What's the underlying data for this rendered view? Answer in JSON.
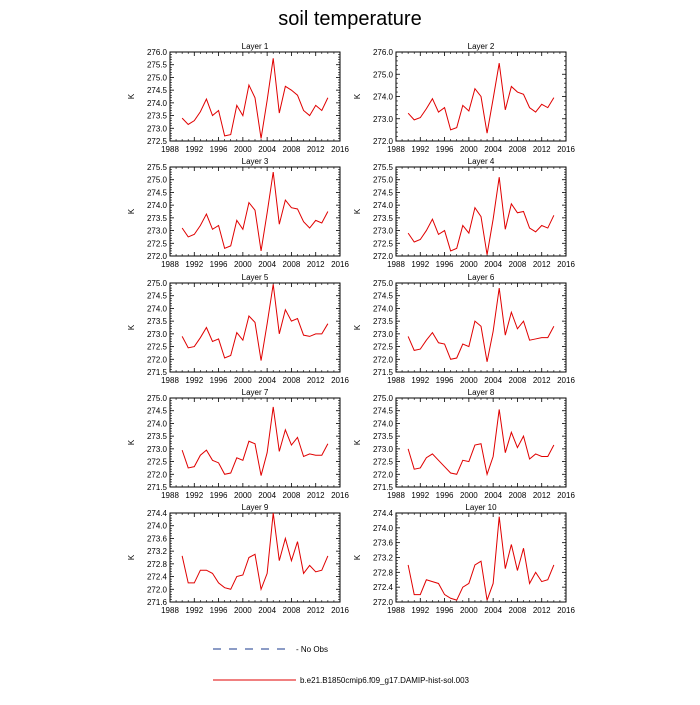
{
  "figure": {
    "title": "soil temperature",
    "legend": {
      "entries": [
        {
          "label": "No Obs",
          "style": "dashed",
          "color": "#1a3a8c"
        },
        {
          "label": "b.e21.B1850cmip6.f09_g17.DAMIP-hist-sol.003",
          "style": "solid",
          "color": "#e00000"
        }
      ]
    }
  },
  "chart_data": [
    {
      "type": "line",
      "title": "Layer 1",
      "ylabel": "K",
      "xlim": [
        1988,
        2016
      ],
      "ylim": [
        272.5,
        276.0
      ],
      "xticks": [
        "1988",
        "1992",
        "1996",
        "2000",
        "2004",
        "2008",
        "2012",
        "2016"
      ],
      "yticks": [
        "272.5",
        "273.0",
        "273.5",
        "274.0",
        "274.5",
        "275.0",
        "275.5",
        "276.0"
      ],
      "x": [
        1990,
        1991,
        1992,
        1993,
        1994,
        1995,
        1996,
        1997,
        1998,
        1999,
        2000,
        2001,
        2002,
        2003,
        2004,
        2005,
        2006,
        2007,
        2008,
        2009,
        2010,
        2011,
        2012,
        2013,
        2014
      ],
      "series": [
        {
          "name": "b.e21.B1850cmip6.f09_g17.DAMIP-hist-sol.003",
          "color": "#e00000",
          "values": [
            273.4,
            273.15,
            273.3,
            273.65,
            274.15,
            273.5,
            273.7,
            272.7,
            272.75,
            273.9,
            273.5,
            274.7,
            274.2,
            272.6,
            274.1,
            275.75,
            273.6,
            274.65,
            274.5,
            274.3,
            273.7,
            273.5,
            273.9,
            273.7,
            274.2
          ]
        }
      ]
    },
    {
      "type": "line",
      "title": "Layer 2",
      "ylabel": "K",
      "xlim": [
        1988,
        2016
      ],
      "ylim": [
        272.0,
        276.0
      ],
      "xticks": [
        "1988",
        "1992",
        "1996",
        "2000",
        "2004",
        "2008",
        "2012",
        "2016"
      ],
      "yticks": [
        "272.0",
        "273.0",
        "274.0",
        "275.0",
        "276.0"
      ],
      "x": [
        1990,
        1991,
        1992,
        1993,
        1994,
        1995,
        1996,
        1997,
        1998,
        1999,
        2000,
        2001,
        2002,
        2003,
        2004,
        2005,
        2006,
        2007,
        2008,
        2009,
        2010,
        2011,
        2012,
        2013,
        2014
      ],
      "series": [
        {
          "name": "b.e21.B1850cmip6.f09_g17.DAMIP-hist-sol.003",
          "color": "#e00000",
          "values": [
            273.25,
            272.95,
            273.05,
            273.45,
            273.9,
            273.3,
            273.5,
            272.5,
            272.6,
            273.6,
            273.35,
            274.35,
            274.0,
            272.35,
            273.9,
            275.5,
            273.4,
            274.45,
            274.2,
            274.1,
            273.5,
            273.3,
            273.65,
            273.5,
            273.95
          ]
        }
      ]
    },
    {
      "type": "line",
      "title": "Layer 3",
      "ylabel": "K",
      "xlim": [
        1988,
        2016
      ],
      "ylim": [
        272.0,
        275.5
      ],
      "xticks": [
        "1988",
        "1992",
        "1996",
        "2000",
        "2004",
        "2008",
        "2012",
        "2016"
      ],
      "yticks": [
        "272.0",
        "272.5",
        "273.0",
        "273.5",
        "274.0",
        "274.5",
        "275.0",
        "275.5"
      ],
      "x": [
        1990,
        1991,
        1992,
        1993,
        1994,
        1995,
        1996,
        1997,
        1998,
        1999,
        2000,
        2001,
        2002,
        2003,
        2004,
        2005,
        2006,
        2007,
        2008,
        2009,
        2010,
        2011,
        2012,
        2013,
        2014
      ],
      "series": [
        {
          "name": "b.e21.B1850cmip6.f09_g17.DAMIP-hist-sol.003",
          "color": "#e00000",
          "values": [
            273.1,
            272.75,
            272.85,
            273.2,
            273.65,
            273.05,
            273.2,
            272.3,
            272.4,
            273.4,
            273.05,
            274.1,
            273.8,
            272.2,
            273.7,
            275.3,
            273.25,
            274.2,
            273.9,
            273.85,
            273.35,
            273.1,
            273.4,
            273.3,
            273.75
          ]
        }
      ]
    },
    {
      "type": "line",
      "title": "Layer 4",
      "ylabel": "K",
      "xlim": [
        1988,
        2016
      ],
      "ylim": [
        272.0,
        275.5
      ],
      "xticks": [
        "1988",
        "1992",
        "1996",
        "2000",
        "2004",
        "2008",
        "2012",
        "2016"
      ],
      "yticks": [
        "272.0",
        "272.5",
        "273.0",
        "273.5",
        "274.0",
        "274.5",
        "275.0",
        "275.5"
      ],
      "x": [
        1990,
        1991,
        1992,
        1993,
        1994,
        1995,
        1996,
        1997,
        1998,
        1999,
        2000,
        2001,
        2002,
        2003,
        2004,
        2005,
        2006,
        2007,
        2008,
        2009,
        2010,
        2011,
        2012,
        2013,
        2014
      ],
      "series": [
        {
          "name": "b.e21.B1850cmip6.f09_g17.DAMIP-hist-sol.003",
          "color": "#e00000",
          "values": [
            272.9,
            272.55,
            272.65,
            273.0,
            273.45,
            272.85,
            273.0,
            272.2,
            272.3,
            273.2,
            272.9,
            273.9,
            273.55,
            272.05,
            273.45,
            275.1,
            273.05,
            274.05,
            273.7,
            273.75,
            273.1,
            272.95,
            273.2,
            273.1,
            273.6
          ]
        }
      ]
    },
    {
      "type": "line",
      "title": "Layer 5",
      "ylabel": "K",
      "xlim": [
        1988,
        2016
      ],
      "ylim": [
        271.5,
        275.0
      ],
      "xticks": [
        "1988",
        "1992",
        "1996",
        "2000",
        "2004",
        "2008",
        "2012",
        "2016"
      ],
      "yticks": [
        "271.5",
        "272.0",
        "272.5",
        "273.0",
        "273.5",
        "274.0",
        "274.5",
        "275.0"
      ],
      "x": [
        1990,
        1991,
        1992,
        1993,
        1994,
        1995,
        1996,
        1997,
        1998,
        1999,
        2000,
        2001,
        2002,
        2003,
        2004,
        2005,
        2006,
        2007,
        2008,
        2009,
        2010,
        2011,
        2012,
        2013,
        2014
      ],
      "series": [
        {
          "name": "b.e21.B1850cmip6.f09_g17.DAMIP-hist-sol.003",
          "color": "#e00000",
          "values": [
            272.9,
            272.45,
            272.5,
            272.85,
            273.25,
            272.7,
            272.8,
            272.05,
            272.15,
            273.05,
            272.75,
            273.7,
            273.45,
            271.95,
            273.4,
            274.95,
            273.0,
            273.95,
            273.5,
            273.6,
            272.95,
            272.9,
            273.0,
            273.0,
            273.4
          ]
        }
      ]
    },
    {
      "type": "line",
      "title": "Layer 6",
      "ylabel": "K",
      "xlim": [
        1988,
        2016
      ],
      "ylim": [
        271.5,
        275.0
      ],
      "xticks": [
        "1988",
        "1992",
        "1996",
        "2000",
        "2004",
        "2008",
        "2012",
        "2016"
      ],
      "yticks": [
        "271.5",
        "272.0",
        "272.5",
        "273.0",
        "273.5",
        "274.0",
        "274.5",
        "275.0"
      ],
      "x": [
        1990,
        1991,
        1992,
        1993,
        1994,
        1995,
        1996,
        1997,
        1998,
        1999,
        2000,
        2001,
        2002,
        2003,
        2004,
        2005,
        2006,
        2007,
        2008,
        2009,
        2010,
        2011,
        2012,
        2013,
        2014
      ],
      "series": [
        {
          "name": "b.e21.B1850cmip6.f09_g17.DAMIP-hist-sol.003",
          "color": "#e00000",
          "values": [
            272.9,
            272.35,
            272.4,
            272.75,
            273.05,
            272.65,
            272.6,
            272.0,
            272.05,
            272.6,
            272.5,
            273.5,
            273.3,
            271.9,
            273.1,
            274.8,
            272.95,
            273.85,
            273.2,
            273.5,
            272.75,
            272.8,
            272.85,
            272.85,
            273.3
          ]
        }
      ]
    },
    {
      "type": "line",
      "title": "Layer 7",
      "ylabel": "K",
      "xlim": [
        1988,
        2016
      ],
      "ylim": [
        271.5,
        275.0
      ],
      "xticks": [
        "1988",
        "1992",
        "1996",
        "2000",
        "2004",
        "2008",
        "2012",
        "2016"
      ],
      "yticks": [
        "271.5",
        "272.0",
        "272.5",
        "273.0",
        "273.5",
        "274.0",
        "274.5",
        "275.0"
      ],
      "x": [
        1990,
        1991,
        1992,
        1993,
        1994,
        1995,
        1996,
        1997,
        1998,
        1999,
        2000,
        2001,
        2002,
        2003,
        2004,
        2005,
        2006,
        2007,
        2008,
        2009,
        2010,
        2011,
        2012,
        2013,
        2014
      ],
      "series": [
        {
          "name": "b.e21.B1850cmip6.f09_g17.DAMIP-hist-sol.003",
          "color": "#e00000",
          "values": [
            272.95,
            272.25,
            272.3,
            272.75,
            272.95,
            272.55,
            272.45,
            272.0,
            272.05,
            272.65,
            272.55,
            273.3,
            273.2,
            271.95,
            272.85,
            274.65,
            272.9,
            273.75,
            273.15,
            273.45,
            272.7,
            272.8,
            272.75,
            272.75,
            273.2
          ]
        }
      ]
    },
    {
      "type": "line",
      "title": "Layer 8",
      "ylabel": "K",
      "xlim": [
        1988,
        2016
      ],
      "ylim": [
        271.5,
        275.0
      ],
      "xticks": [
        "1988",
        "1992",
        "1996",
        "2000",
        "2004",
        "2008",
        "2012",
        "2016"
      ],
      "yticks": [
        "271.5",
        "272.0",
        "272.5",
        "273.0",
        "273.5",
        "274.0",
        "274.5",
        "275.0"
      ],
      "x": [
        1990,
        1991,
        1992,
        1993,
        1994,
        1995,
        1996,
        1997,
        1998,
        1999,
        2000,
        2001,
        2002,
        2003,
        2004,
        2005,
        2006,
        2007,
        2008,
        2009,
        2010,
        2011,
        2012,
        2013,
        2014
      ],
      "series": [
        {
          "name": "b.e21.B1850cmip6.f09_g17.DAMIP-hist-sol.003",
          "color": "#e00000",
          "values": [
            273.0,
            272.2,
            272.25,
            272.65,
            272.8,
            272.55,
            272.3,
            272.05,
            272.0,
            272.55,
            272.5,
            273.15,
            273.2,
            272.0,
            272.7,
            274.55,
            272.85,
            273.65,
            273.05,
            273.5,
            272.6,
            272.8,
            272.7,
            272.7,
            273.15
          ]
        }
      ]
    },
    {
      "type": "line",
      "title": "Layer 9",
      "ylabel": "K",
      "xlim": [
        1988,
        2016
      ],
      "ylim": [
        271.6,
        274.4
      ],
      "xticks": [
        "1988",
        "1992",
        "1996",
        "2000",
        "2004",
        "2008",
        "2012",
        "2016"
      ],
      "yticks": [
        "271.6",
        "272.0",
        "272.4",
        "272.8",
        "273.2",
        "273.6",
        "274.0",
        "274.4"
      ],
      "x": [
        1990,
        1991,
        1992,
        1993,
        1994,
        1995,
        1996,
        1997,
        1998,
        1999,
        2000,
        2001,
        2002,
        2003,
        2004,
        2005,
        2006,
        2007,
        2008,
        2009,
        2010,
        2011,
        2012,
        2013,
        2014
      ],
      "series": [
        {
          "name": "b.e21.B1850cmip6.f09_g17.DAMIP-hist-sol.003",
          "color": "#e00000",
          "values": [
            273.05,
            272.2,
            272.2,
            272.6,
            272.6,
            272.5,
            272.2,
            272.05,
            272.0,
            272.4,
            272.45,
            273.0,
            273.1,
            272.0,
            272.5,
            274.4,
            272.9,
            273.6,
            272.9,
            273.5,
            272.5,
            272.75,
            272.55,
            272.6,
            273.05
          ]
        }
      ]
    },
    {
      "type": "line",
      "title": "Layer 10",
      "ylabel": "K",
      "xlim": [
        1988,
        2016
      ],
      "ylim": [
        272.0,
        274.4
      ],
      "xticks": [
        "1988",
        "1992",
        "1996",
        "2000",
        "2004",
        "2008",
        "2012",
        "2016"
      ],
      "yticks": [
        "272.0",
        "272.4",
        "272.8",
        "273.2",
        "273.6",
        "274.0",
        "274.4"
      ],
      "x": [
        1990,
        1991,
        1992,
        1993,
        1994,
        1995,
        1996,
        1997,
        1998,
        1999,
        2000,
        2001,
        2002,
        2003,
        2004,
        2005,
        2006,
        2007,
        2008,
        2009,
        2010,
        2011,
        2012,
        2013,
        2014
      ],
      "series": [
        {
          "name": "b.e21.B1850cmip6.f09_g17.DAMIP-hist-sol.003",
          "color": "#e00000",
          "values": [
            273.0,
            272.2,
            272.2,
            272.6,
            272.55,
            272.5,
            272.2,
            272.1,
            272.05,
            272.4,
            272.5,
            273.0,
            273.1,
            272.05,
            272.5,
            274.3,
            272.9,
            273.55,
            272.85,
            273.45,
            272.5,
            272.8,
            272.55,
            272.6,
            273.0
          ]
        }
      ]
    }
  ]
}
